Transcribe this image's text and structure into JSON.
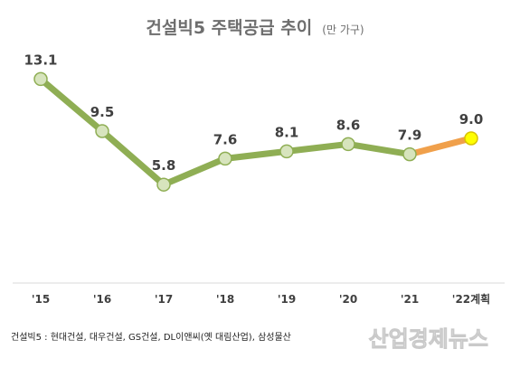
{
  "chart_data": {
    "type": "line",
    "title": "건설빅5 주택공급 추이",
    "unit": "(만 가구)",
    "categories": [
      "'15",
      "'16",
      "'17",
      "'18",
      "'19",
      "'20",
      "'21",
      "'22계획"
    ],
    "values": [
      13.1,
      9.5,
      5.8,
      7.6,
      8.1,
      8.6,
      7.9,
      9.0
    ],
    "value_labels": [
      "13.1",
      "9.5",
      "5.8",
      "7.6",
      "8.1",
      "8.6",
      "7.9",
      "9.0"
    ],
    "ylim": [
      0,
      15
    ],
    "grid": false,
    "colors": {
      "actual_line": "#8fae54",
      "actual_marker": "#d7e4bd",
      "actual_marker_edge": "#8fae54",
      "plan_line": "#f0a04b",
      "plan_marker": "#ffff00",
      "plan_marker_edge": "#d8c200"
    }
  },
  "footnote": "건설빅5 : 현대건설, 대우건설, GS건설, DL이앤씨(옛 대림산업), 삼성물산",
  "watermark": "산업경제뉴스"
}
